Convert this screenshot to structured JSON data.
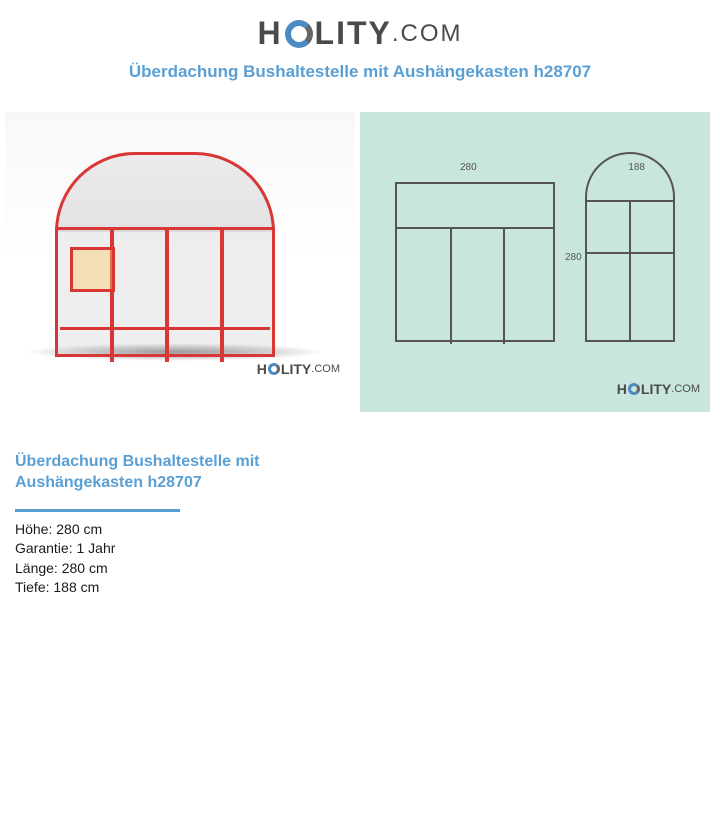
{
  "logo": {
    "text_h": "H",
    "text_lity": "LITY",
    "text_com": ".COM"
  },
  "title": "Überdachung Bushaltestelle mit Aushängekasten h28707",
  "diagram": {
    "dim_width": "280",
    "dim_depth": "188",
    "dim_height": "280"
  },
  "product": {
    "name": "Überdachung Bushaltestelle mit Aushängekasten h28707",
    "specs": {
      "hoehe_label": "Höhe:",
      "hoehe_value": "280 cm",
      "garantie_label": "Garantie:",
      "garantie_value": "1 Jahr",
      "laenge_label": "Länge:",
      "laenge_value": "280 cm",
      "tiefe_label": "Tiefe:",
      "tiefe_value": "188 cm"
    }
  },
  "colors": {
    "brand_blue": "#5a9fd4",
    "logo_circle_blue": "#4a8bc4",
    "logo_gray": "#4a4a4a",
    "shelter_red": "#d93636",
    "diagram_bg": "#c8e6de",
    "diagram_line": "#555555",
    "text_dark": "#1a1a1a"
  }
}
